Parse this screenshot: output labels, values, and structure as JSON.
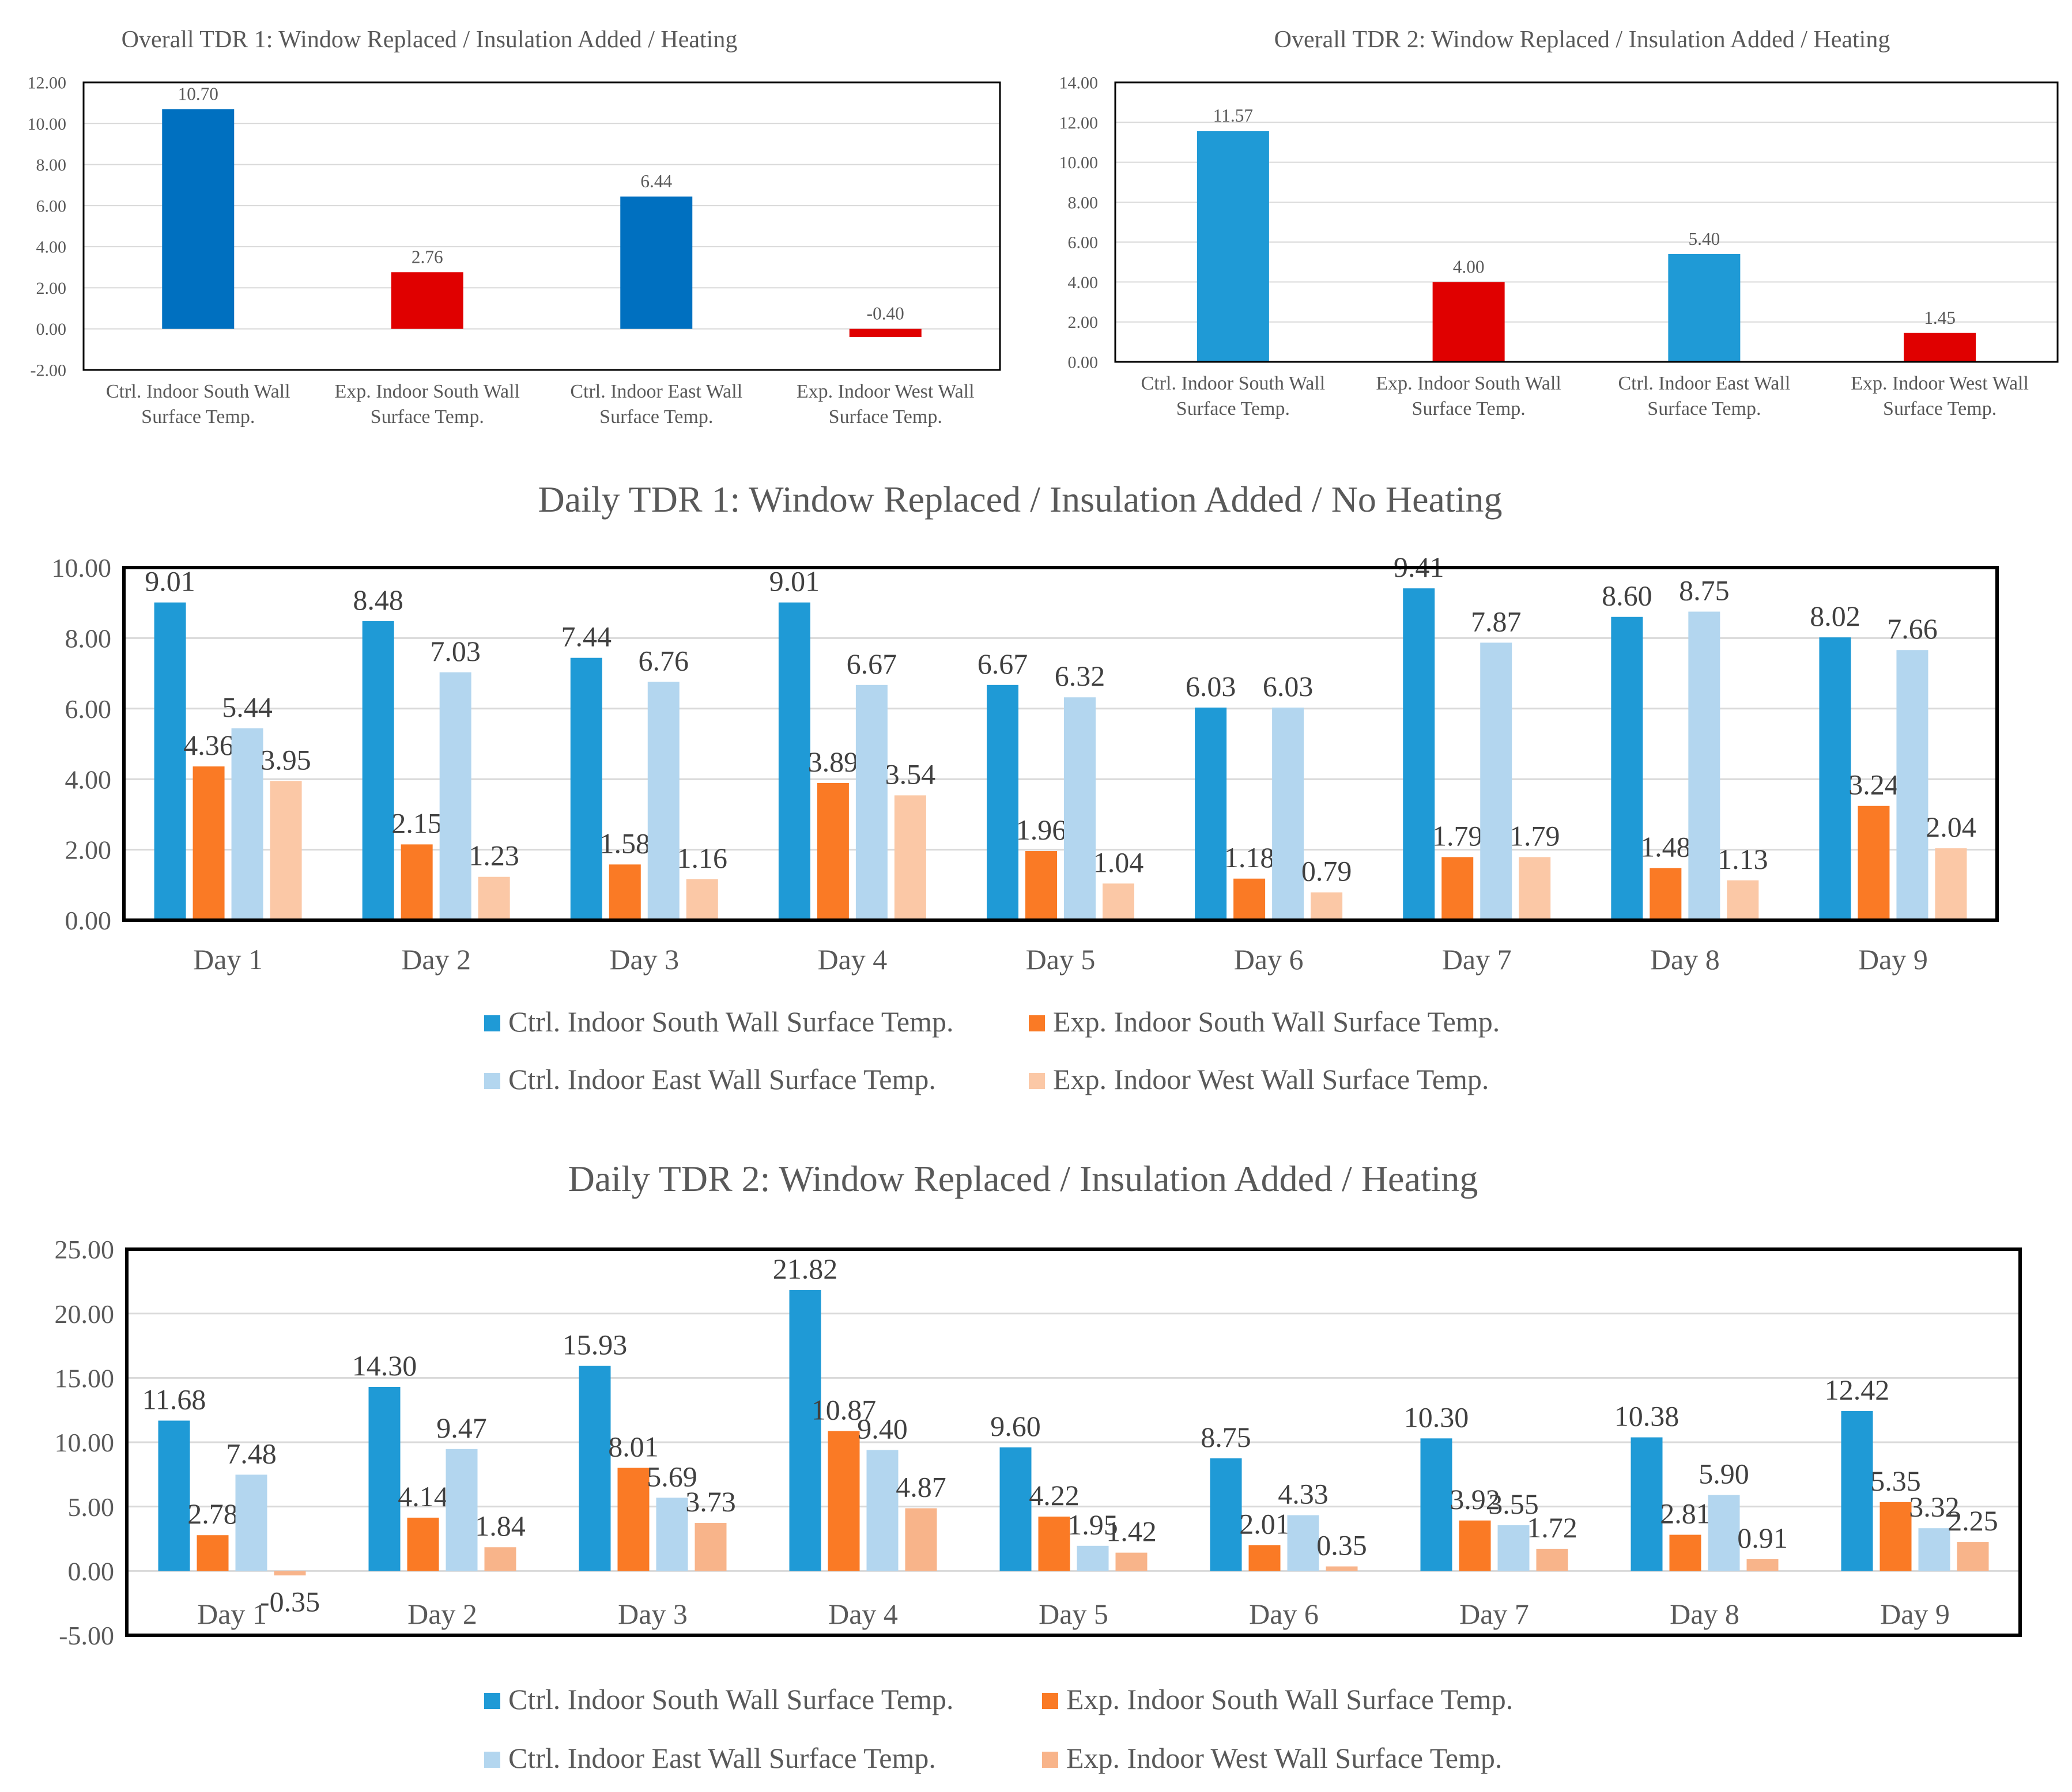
{
  "chart_data": [
    {
      "type": "bar",
      "title": "Overall TDR 1: Window Replaced / Insulation Added / Heating",
      "categories": [
        "Ctrl. Indoor South Wall Surface Temp.",
        "Exp. Indoor South Wall Surface Temp.",
        "Ctrl. Indoor East Wall Surface Temp.",
        "Exp. Indoor West Wall Surface Temp."
      ],
      "values": [
        10.7,
        2.76,
        6.44,
        -0.4
      ],
      "value_labels": [
        "10.70",
        "2.76",
        "6.44",
        "-0.40"
      ],
      "ylim": [
        -2,
        12
      ],
      "yticks": [
        "-2.00",
        "0.00",
        "2.00",
        "4.00",
        "6.00",
        "8.00",
        "10.00",
        "12.00"
      ],
      "bar_colors": [
        "#0070c0",
        "#e00000",
        "#0070c0",
        "#e00000"
      ],
      "grid": true,
      "legend": "none"
    },
    {
      "type": "bar",
      "title": "Overall TDR 2: Window Replaced / Insulation Added / Heating",
      "categories": [
        "Ctrl. Indoor South Wall Surface Temp.",
        "Exp. Indoor South Wall Surface Temp.",
        "Ctrl. Indoor East Wall Surface Temp.",
        "Exp. Indoor West Wall Surface Temp."
      ],
      "values": [
        11.57,
        4.0,
        5.4,
        1.45
      ],
      "value_labels": [
        "11.57",
        "4.00",
        "5.40",
        "1.45"
      ],
      "ylim": [
        0,
        14
      ],
      "yticks": [
        "0.00",
        "2.00",
        "4.00",
        "6.00",
        "8.00",
        "10.00",
        "12.00",
        "14.00"
      ],
      "bar_colors": [
        "#1f9ad6",
        "#e00000",
        "#1f9ad6",
        "#e00000"
      ],
      "grid": true,
      "legend": "none"
    },
    {
      "type": "bar",
      "title": "Daily TDR 1: Window Replaced / Insulation Added / No Heating",
      "categories": [
        "Day 1",
        "Day 2",
        "Day 3",
        "Day 4",
        "Day 5",
        "Day 6",
        "Day 7",
        "Day 8",
        "Day 9"
      ],
      "series": [
        {
          "name": "Ctrl. Indoor South Wall Surface Temp.",
          "color": "#1f9ad6",
          "values": [
            9.01,
            8.48,
            7.44,
            9.01,
            6.67,
            6.03,
            9.41,
            8.6,
            8.02
          ],
          "labels": [
            "9.01",
            "8.48",
            "7.44",
            "9.01",
            "6.67",
            "6.03",
            "9.41",
            "8.60",
            "8.02"
          ]
        },
        {
          "name": "Exp. Indoor South Wall Surface Temp.",
          "color": "#fa7a25",
          "values": [
            4.36,
            2.15,
            1.58,
            3.89,
            1.96,
            1.18,
            1.79,
            1.48,
            3.24
          ],
          "labels": [
            "4.36",
            "2.15",
            "1.58",
            "3.89",
            "1.96",
            "1.18",
            "1.79",
            "1.48",
            "3.24"
          ]
        },
        {
          "name": "Ctrl. Indoor East Wall Surface Temp.",
          "color": "#b3d6ef",
          "values": [
            5.44,
            7.03,
            6.76,
            6.67,
            6.32,
            6.03,
            7.87,
            8.75,
            7.66
          ],
          "labels": [
            "5.44",
            "7.03",
            "6.76",
            "6.67",
            "6.32",
            "6.03",
            "7.87",
            "8.75",
            "7.66"
          ]
        },
        {
          "name": "Exp. Indoor West Wall Surface Temp.",
          "color": "#fbc8a6",
          "values": [
            3.95,
            1.23,
            1.16,
            3.54,
            1.04,
            0.79,
            1.79,
            1.13,
            2.04
          ],
          "labels": [
            "3.95",
            "1.23",
            "1.16",
            "3.54",
            "1.04",
            "0.79",
            "1.79",
            "1.13",
            "2.04"
          ]
        }
      ],
      "ylim": [
        0,
        10
      ],
      "yticks": [
        "0.00",
        "2.00",
        "4.00",
        "6.00",
        "8.00",
        "10.00"
      ],
      "grid": true,
      "legend": "bottom"
    },
    {
      "type": "bar",
      "title": "Daily TDR 2: Window Replaced / Insulation Added / Heating",
      "categories": [
        "Day 1",
        "Day 2",
        "Day 3",
        "Day 4",
        "Day 5",
        "Day 6",
        "Day 7",
        "Day 8",
        "Day 9"
      ],
      "series": [
        {
          "name": "Ctrl. Indoor South Wall Surface Temp.",
          "color": "#1f9ad6",
          "values": [
            11.68,
            14.3,
            15.93,
            21.82,
            9.6,
            8.75,
            10.3,
            10.38,
            12.42
          ],
          "labels": [
            "11.68",
            "14.30",
            "15.93",
            "21.82",
            "9.60",
            "8.75",
            "10.30",
            "10.38",
            "12.42"
          ]
        },
        {
          "name": "Exp. Indoor South Wall Surface Temp.",
          "color": "#fa7a25",
          "values": [
            2.78,
            4.14,
            8.01,
            10.87,
            4.22,
            2.01,
            3.92,
            2.81,
            5.35
          ],
          "labels": [
            "2.78",
            "4.14",
            "8.01",
            "10.87",
            "4.22",
            "2.01",
            "3.92",
            "2.81",
            "5.35"
          ]
        },
        {
          "name": "Ctrl. Indoor East Wall Surface Temp.",
          "color": "#b3d6ef",
          "values": [
            7.48,
            9.47,
            5.69,
            9.4,
            1.95,
            4.33,
            3.55,
            5.9,
            3.32
          ],
          "labels": [
            "7.48",
            "9.47",
            "5.69",
            "9.40",
            "1.95",
            "4.33",
            "3.55",
            "5.90",
            "3.32"
          ]
        },
        {
          "name": "Exp. Indoor West Wall Surface Temp.",
          "color": "#f8b48a",
          "values": [
            -0.35,
            1.84,
            3.73,
            4.87,
            1.42,
            0.35,
            1.72,
            0.91,
            2.25
          ],
          "labels": [
            "-0.35",
            "1.84",
            "3.73",
            "4.87",
            "1.42",
            "0.35",
            "1.72",
            "0.91",
            "2.25"
          ]
        }
      ],
      "ylim": [
        -5,
        25
      ],
      "yticks": [
        "-5.00",
        "0.00",
        "5.00",
        "10.00",
        "15.00",
        "20.00",
        "25.00"
      ],
      "grid": true,
      "legend": "bottom"
    }
  ]
}
